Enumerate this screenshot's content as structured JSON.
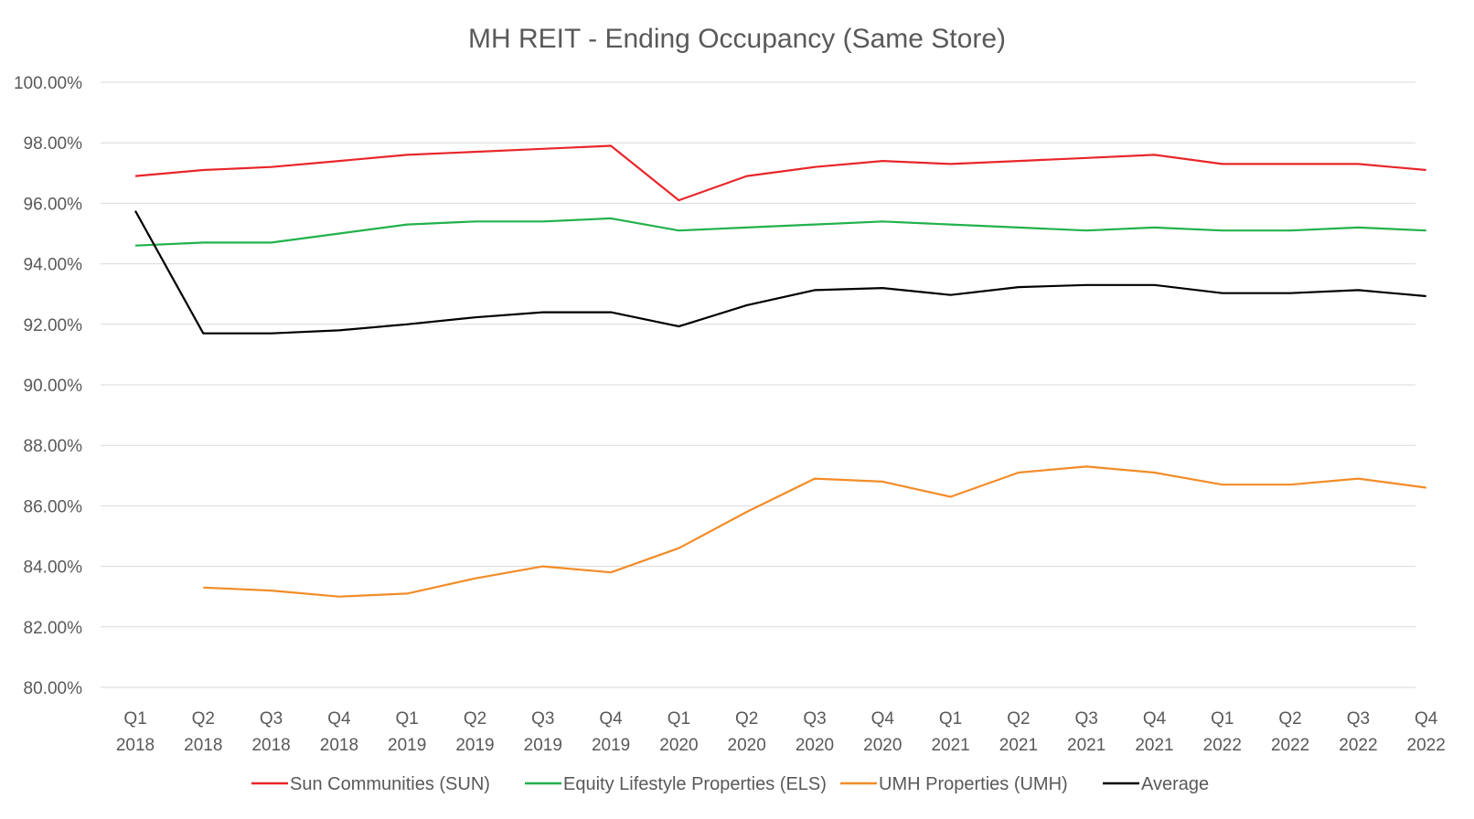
{
  "chart_data": {
    "type": "line",
    "title": "MH REIT - Ending Occupancy (Same Store)",
    "xlabel": "",
    "ylabel": "",
    "ylim": [
      80,
      100
    ],
    "y_tick_values": [
      80,
      82,
      84,
      86,
      88,
      90,
      92,
      94,
      96,
      98,
      100
    ],
    "y_tick_labels": [
      "80.00%",
      "82.00%",
      "84.00%",
      "86.00%",
      "88.00%",
      "90.00%",
      "92.00%",
      "94.00%",
      "96.00%",
      "98.00%",
      "100.00%"
    ],
    "grid": true,
    "legend_position": "bottom",
    "categories": [
      {
        "quarter": "Q1",
        "year": "2018"
      },
      {
        "quarter": "Q2",
        "year": "2018"
      },
      {
        "quarter": "Q3",
        "year": "2018"
      },
      {
        "quarter": "Q4",
        "year": "2018"
      },
      {
        "quarter": "Q1",
        "year": "2019"
      },
      {
        "quarter": "Q2",
        "year": "2019"
      },
      {
        "quarter": "Q3",
        "year": "2019"
      },
      {
        "quarter": "Q4",
        "year": "2019"
      },
      {
        "quarter": "Q1",
        "year": "2020"
      },
      {
        "quarter": "Q2",
        "year": "2020"
      },
      {
        "quarter": "Q3",
        "year": "2020"
      },
      {
        "quarter": "Q4",
        "year": "2020"
      },
      {
        "quarter": "Q1",
        "year": "2021"
      },
      {
        "quarter": "Q2",
        "year": "2021"
      },
      {
        "quarter": "Q3",
        "year": "2021"
      },
      {
        "quarter": "Q4",
        "year": "2021"
      },
      {
        "quarter": "Q1",
        "year": "2022"
      },
      {
        "quarter": "Q2",
        "year": "2022"
      },
      {
        "quarter": "Q3",
        "year": "2022"
      },
      {
        "quarter": "Q4",
        "year": "2022"
      }
    ],
    "series": [
      {
        "name": "Sun Communities (SUN)",
        "color": "#e8262a",
        "values": [
          96.9,
          97.1,
          97.2,
          97.4,
          97.6,
          97.7,
          97.8,
          97.9,
          96.1,
          96.9,
          97.2,
          97.4,
          97.3,
          97.4,
          97.5,
          97.6,
          97.3,
          97.3,
          97.3,
          97.1
        ]
      },
      {
        "name": "Equity Lifestyle Properties (ELS)",
        "color": "#22b14c",
        "values": [
          94.6,
          94.7,
          94.7,
          95.0,
          95.3,
          95.4,
          95.4,
          95.5,
          95.1,
          95.2,
          95.3,
          95.4,
          95.3,
          95.2,
          95.1,
          95.2,
          95.1,
          95.1,
          95.2,
          95.1
        ]
      },
      {
        "name": "UMH Properties (UMH)",
        "color": "#f28c28",
        "values": [
          null,
          83.3,
          83.2,
          83.0,
          83.1,
          83.6,
          84.0,
          83.8,
          84.6,
          85.8,
          86.9,
          86.8,
          86.3,
          87.1,
          87.3,
          87.1,
          86.7,
          86.7,
          86.9,
          86.6
        ]
      },
      {
        "name": "Average",
        "color": "#000000",
        "values": [
          95.75,
          91.7,
          91.7,
          91.8,
          92.0,
          92.23,
          92.4,
          92.4,
          91.93,
          92.63,
          93.13,
          93.2,
          92.97,
          93.23,
          93.3,
          93.3,
          93.03,
          93.03,
          93.13,
          92.93
        ]
      }
    ]
  }
}
